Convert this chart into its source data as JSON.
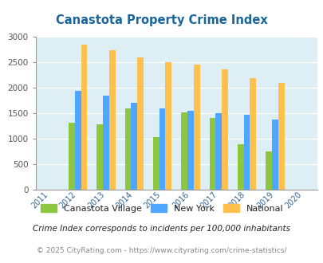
{
  "title": "Canastota Property Crime Index",
  "years": [
    2011,
    2012,
    2013,
    2014,
    2015,
    2016,
    2017,
    2018,
    2019,
    2020
  ],
  "canastota": [
    null,
    1310,
    1285,
    1590,
    1030,
    1520,
    1400,
    890,
    750,
    null
  ],
  "new_york": [
    null,
    1940,
    1840,
    1710,
    1590,
    1545,
    1500,
    1460,
    1370,
    null
  ],
  "national": [
    null,
    2850,
    2730,
    2600,
    2500,
    2460,
    2360,
    2190,
    2100,
    null
  ],
  "color_canastota": "#8dc63f",
  "color_new_york": "#4da6ff",
  "color_national": "#ffc04d",
  "bg_color": "#ddeef5",
  "title_color": "#1a6699",
  "legend_label_color": "#222222",
  "xtick_color": "#336699",
  "ytick_color": "#555555",
  "legend_labels": [
    "Canastota Village",
    "New York",
    "National"
  ],
  "footnote1": "Crime Index corresponds to incidents per 100,000 inhabitants",
  "footnote2": "© 2025 CityRating.com - https://www.cityrating.com/crime-statistics/",
  "ylim": [
    0,
    3000
  ],
  "yticks": [
    0,
    500,
    1000,
    1500,
    2000,
    2500,
    3000
  ],
  "bar_width": 0.22
}
